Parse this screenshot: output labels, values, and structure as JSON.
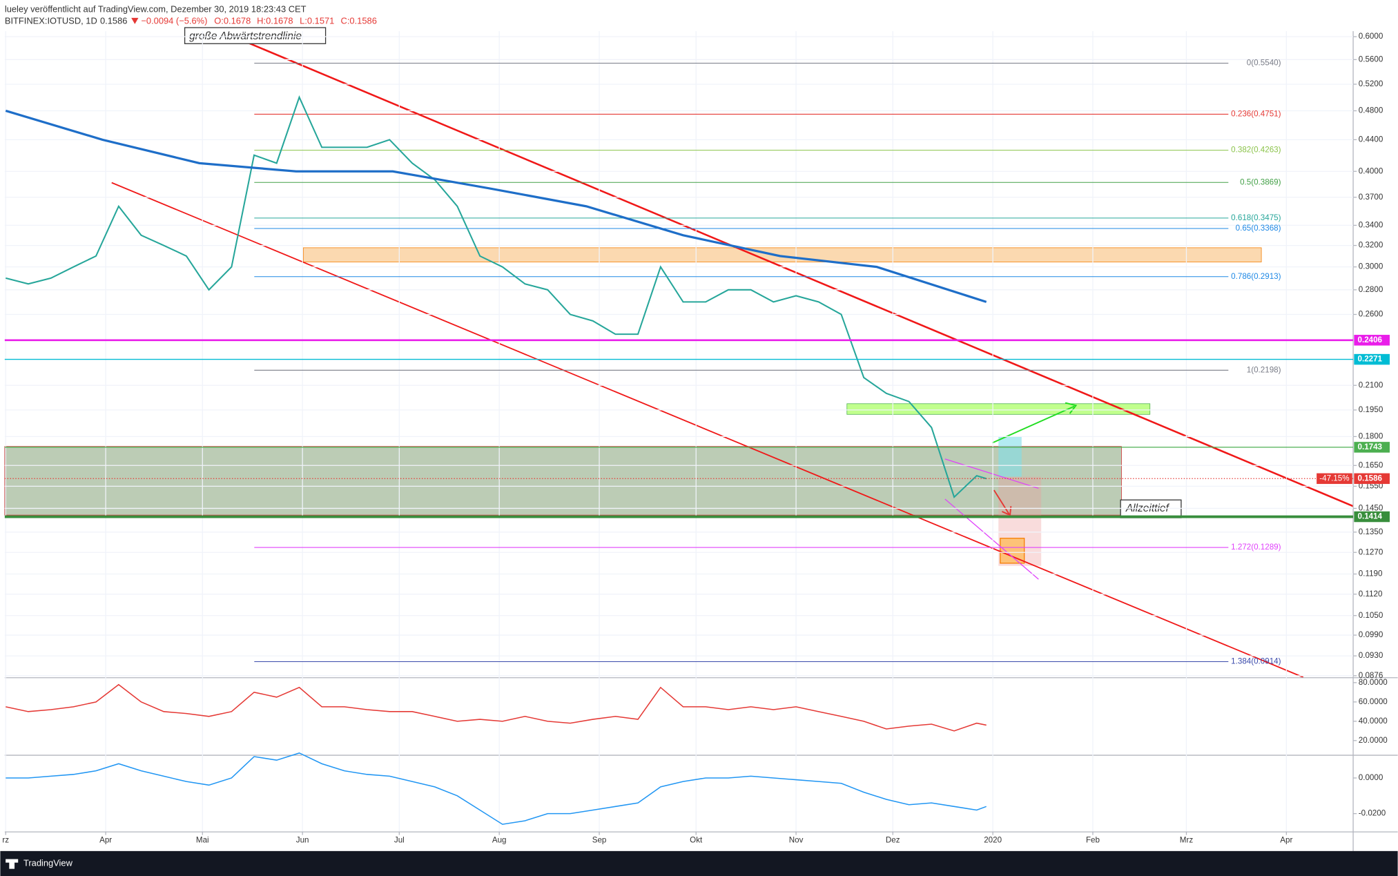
{
  "chart_data": {
    "type": "line",
    "title": "lueley veröffentlicht auf TradingView.com, Dezember 30, 2019 18:23:43 CET",
    "symbol": "BITFINEX:IOTUSD, 1D",
    "last": "0.1586",
    "change": "−0.0094 (−5.6%)",
    "ohlc": [
      "O:0.1678",
      "H:0.1678",
      "L:0.1571",
      "C:0.1586"
    ],
    "brand": "TradingView",
    "annotations": [
      "große Abwärtstrendlinie",
      "Allzeittief"
    ],
    "log_scale": true,
    "grid": true,
    "xlim": [
      -0.3,
      417.7
    ],
    "xticks": [
      {
        "value": 0,
        "label": "rz"
      },
      {
        "value": 31,
        "label": "Apr"
      },
      {
        "value": 61,
        "label": "Mai"
      },
      {
        "value": 92,
        "label": "Jun"
      },
      {
        "value": 122,
        "label": "Jul"
      },
      {
        "value": 153,
        "label": "Aug"
      },
      {
        "value": 184,
        "label": "Sep"
      },
      {
        "value": 214,
        "label": "Okt"
      },
      {
        "value": 245,
        "label": "Nov"
      },
      {
        "value": 275,
        "label": "Dez"
      },
      {
        "value": 306,
        "label": "2020"
      },
      {
        "value": 337,
        "label": "Feb"
      },
      {
        "value": 366,
        "label": "Mrz"
      },
      {
        "value": 397,
        "label": "Apr"
      }
    ],
    "ylim": [
      0.0872,
      0.61
    ],
    "yticks": [
      {
        "value": 0.6,
        "label": "0.6000"
      },
      {
        "value": 0.56,
        "label": "0.5600"
      },
      {
        "value": 0.52,
        "label": "0.5200"
      },
      {
        "value": 0.48,
        "label": "0.4800"
      },
      {
        "value": 0.44,
        "label": "0.4400"
      },
      {
        "value": 0.4,
        "label": "0.4000"
      },
      {
        "value": 0.37,
        "label": "0.3700"
      },
      {
        "value": 0.34,
        "label": "0.3400"
      },
      {
        "value": 0.32,
        "label": "0.3200"
      },
      {
        "value": 0.3,
        "label": "0.3000"
      },
      {
        "value": 0.28,
        "label": "0.2800"
      },
      {
        "value": 0.26,
        "label": "0.2600"
      },
      {
        "value": 0.21,
        "label": "0.2100"
      },
      {
        "value": 0.195,
        "label": "0.1950"
      },
      {
        "value": 0.18,
        "label": "0.1800"
      },
      {
        "value": 0.165,
        "label": "0.1650"
      },
      {
        "value": 0.155,
        "label": "0.1550"
      },
      {
        "value": 0.145,
        "label": "0.1450"
      },
      {
        "value": 0.135,
        "label": "0.1350"
      },
      {
        "value": 0.127,
        "label": "0.1270"
      },
      {
        "value": 0.119,
        "label": "0.1190"
      },
      {
        "value": 0.112,
        "label": "0.1120"
      },
      {
        "value": 0.105,
        "label": "0.1050"
      },
      {
        "value": 0.099,
        "label": "0.0990"
      },
      {
        "value": 0.093,
        "label": "0.0930"
      },
      {
        "value": 0.0876,
        "label": "0.0876"
      }
    ],
    "series": [
      {
        "color": "#26a69a",
        "x": [
          0,
          7,
          14,
          21,
          28,
          35,
          42,
          49,
          56,
          63,
          70,
          77,
          84,
          91,
          98,
          105,
          112,
          119,
          126,
          133,
          140,
          147,
          154,
          161,
          168,
          175,
          182,
          189,
          196,
          203,
          210,
          217,
          224,
          231,
          238,
          245,
          252,
          259,
          266,
          273,
          280,
          287,
          294,
          301,
          304
        ],
        "values": [
          0.29,
          0.285,
          0.29,
          0.3,
          0.31,
          0.36,
          0.33,
          0.32,
          0.31,
          0.28,
          0.3,
          0.42,
          0.41,
          0.5,
          0.43,
          0.43,
          0.43,
          0.44,
          0.41,
          0.39,
          0.36,
          0.31,
          0.3,
          0.285,
          0.28,
          0.26,
          0.255,
          0.245,
          0.245,
          0.3,
          0.27,
          0.27,
          0.28,
          0.28,
          0.27,
          0.275,
          0.27,
          0.26,
          0.215,
          0.205,
          0.2,
          0.185,
          0.15,
          0.16,
          0.1586
        ]
      },
      {
        "color": "#1e6ec8",
        "x": [
          0,
          30,
          60,
          90,
          120,
          150,
          180,
          210,
          240,
          270,
          304
        ],
        "values": [
          0.48,
          0.44,
          0.41,
          0.4,
          0.4,
          0.38,
          0.36,
          0.33,
          0.31,
          0.3,
          0.27
        ]
      }
    ],
    "fib_levels": [
      {
        "label": "0(0.5540)",
        "value": 0.554,
        "color": "#787b86"
      },
      {
        "label": "0.236(0.4751)",
        "value": 0.4751,
        "color": "#e53935"
      },
      {
        "label": "0.382(0.4263)",
        "value": 0.4263,
        "color": "#8bc34a"
      },
      {
        "label": "0.5(0.3869)",
        "value": 0.3869,
        "color": "#43a047"
      },
      {
        "label": "0.618(0.3475)",
        "value": 0.3475,
        "color": "#26a69a"
      },
      {
        "label": "0.65(0.3368)",
        "value": 0.3368,
        "color": "#1e88e5"
      },
      {
        "label": "0.786(0.2913)",
        "value": 0.2913,
        "color": "#1e88e5"
      },
      {
        "label": "1(0.2198)",
        "value": 0.2198,
        "color": "#787b86"
      },
      {
        "label": "1.272(0.1289)",
        "value": 0.1289,
        "color": "#e040fb"
      },
      {
        "label": "1.384(0.0914)",
        "value": 0.0914,
        "color": "#3949ab"
      }
    ],
    "price_labels": [
      {
        "value": 0.2406,
        "color": "#e91ee9",
        "width": 2
      },
      {
        "value": 0.2271,
        "color": "#00bcd4",
        "width": 1
      },
      {
        "value": 0.1743,
        "color": "#4caf50",
        "width": 1
      },
      {
        "value": 0.1586,
        "color": "#e53935",
        "width": 1,
        "line_style": "dotted"
      },
      {
        "value": 0.1414,
        "color": "#388e3c",
        "width": 3
      }
    ],
    "change_label": "-47.15%",
    "rsi": {
      "color": "#e53935",
      "ylim": [
        7.1,
        83.7
      ],
      "yticks": [
        {
          "value": 80,
          "label": "80.0000"
        },
        {
          "value": 60,
          "label": "60.0000"
        },
        {
          "value": 40,
          "label": "40.0000"
        },
        {
          "value": 20,
          "label": "20.0000"
        }
      ],
      "values": [
        55,
        50,
        52,
        55,
        60,
        78,
        60,
        50,
        48,
        45,
        50,
        70,
        65,
        75,
        55,
        55,
        52,
        50,
        50,
        45,
        40,
        42,
        40,
        45,
        40,
        38,
        42,
        45,
        42,
        75,
        55,
        55,
        52,
        55,
        52,
        55,
        50,
        45,
        40,
        32,
        35,
        37,
        30,
        38,
        36
      ]
    },
    "macd": {
      "color": "#2196f3",
      "ylim": [
        -0.03,
        0.0125
      ],
      "yticks": [
        {
          "value": 0,
          "label": "0.0000"
        },
        {
          "value": -0.02,
          "label": "-0.0200"
        }
      ],
      "values": [
        0,
        0,
        0.001,
        0.002,
        0.004,
        0.008,
        0.004,
        0.001,
        -0.002,
        -0.004,
        0,
        0.012,
        0.01,
        0.014,
        0.008,
        0.004,
        0.002,
        0.001,
        -0.002,
        -0.005,
        -0.01,
        -0.018,
        -0.026,
        -0.024,
        -0.02,
        -0.02,
        -0.018,
        -0.016,
        -0.014,
        -0.005,
        -0.002,
        0,
        0,
        0.001,
        0,
        -0.001,
        -0.002,
        -0.003,
        -0.008,
        -0.012,
        -0.015,
        -0.014,
        -0.016,
        -0.018,
        -0.016
      ]
    }
  }
}
